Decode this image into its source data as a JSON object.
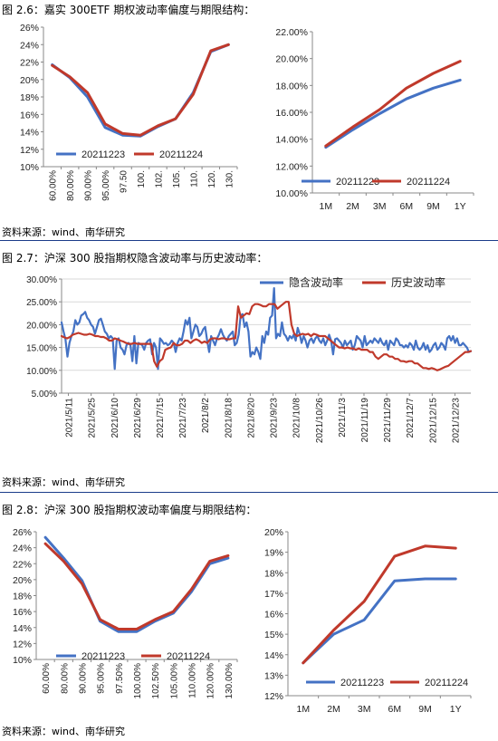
{
  "colors": {
    "blue": "#4472C4",
    "red": "#C0392B",
    "grid": "#d9d9d9",
    "rule": "#1a3c8a"
  },
  "fig1": {
    "title": "图 2.6：嘉实 300ETF 期权波动率偏度与期限结构：",
    "source": "资料来源：wind、南华研究"
  },
  "fig2": {
    "title": "图 2.7：沪深 300 股指期权隐含波动率与历史波动率：",
    "source": "资料来源：wind、南华研究"
  },
  "fig3": {
    "title": "图 2.8：沪深 300 股指期权波动率偏度与期限结构：",
    "source": "资料来源：wind、南华研究"
  },
  "chart_data": [
    {
      "id": "c1",
      "type": "line",
      "title": "",
      "categories": [
        "60.00%",
        "80.00%",
        "90.00%",
        "95.00%",
        "97.50%",
        "100.00%",
        "102.50%",
        "105.00%",
        "110.00%",
        "120.00%",
        "130.00%"
      ],
      "category_labels": [
        "60.00%",
        "80.00%",
        "90.00%",
        "95.00%",
        "97.50",
        "100.",
        "102.",
        "105.",
        "110.",
        "120.",
        "130."
      ],
      "ylim": [
        10,
        26
      ],
      "yticks": [
        10,
        12,
        14,
        16,
        18,
        20,
        22,
        24,
        26
      ],
      "ytick_labels": [
        "10%",
        "12%",
        "14%",
        "16%",
        "18%",
        "20%",
        "22%",
        "24%",
        "26%"
      ],
      "grid": false,
      "legend_position": "bottom-left",
      "series": [
        {
          "name": "20211223",
          "values": [
            21.7,
            20.2,
            18.0,
            14.5,
            13.6,
            13.5,
            14.6,
            15.5,
            18.5,
            23.2,
            24.0
          ]
        },
        {
          "name": "20211224",
          "values": [
            21.6,
            20.3,
            18.5,
            14.9,
            13.8,
            13.6,
            14.7,
            15.5,
            18.3,
            23.3,
            24.0
          ]
        }
      ]
    },
    {
      "id": "c2",
      "type": "line",
      "title": "",
      "categories": [
        "1M",
        "2M",
        "3M",
        "6M",
        "9M",
        "1Y"
      ],
      "ylim": [
        10,
        22
      ],
      "yticks": [
        10,
        12,
        14,
        16,
        18,
        20,
        22
      ],
      "ytick_labels": [
        "10.00%",
        "12.00%",
        "14.00%",
        "16.00%",
        "18.00%",
        "20.00%",
        "22.00%"
      ],
      "grid": false,
      "legend_position": "bottom",
      "series": [
        {
          "name": "20211223",
          "values": [
            13.4,
            14.7,
            15.9,
            17.0,
            17.8,
            18.4
          ]
        },
        {
          "name": "20211224",
          "values": [
            13.5,
            14.9,
            16.2,
            17.8,
            18.9,
            19.8
          ]
        }
      ]
    },
    {
      "id": "c3",
      "type": "line",
      "title": "",
      "x_labels": [
        "2021/5/11",
        "2021/5/25",
        "2021/6/10",
        "2021/6/29",
        "2021/7/15",
        "2021/7/23",
        "2021/8/2",
        "2021/8/18",
        "2021/8/20",
        "2021/9/23",
        "2021/10/8",
        "2021/10/26",
        "2021/11/3",
        "2021/11/19",
        "2021/11/29",
        "2021/12/7",
        "2021/12/15",
        "2021/12/23"
      ],
      "ylim": [
        5,
        30
      ],
      "yticks": [
        5,
        10,
        15,
        20,
        25,
        30
      ],
      "ytick_labels": [
        "5.00%",
        "10.00%",
        "15.00%",
        "20.00%",
        "25.00%",
        "30.00%"
      ],
      "grid": true,
      "legend_position": "top-right",
      "series": [
        {
          "name": "隐含波动率",
          "values": [
            20.5,
            18.5,
            16.8,
            13.0,
            16.0,
            17.5,
            18.5,
            21.0,
            20.0,
            20.5,
            22.0,
            22.3,
            22.8,
            21.5,
            21.0,
            20.0,
            19.5,
            18.0,
            19.5,
            21.0,
            21.3,
            20.0,
            18.5,
            18.0,
            17.0,
            17.5,
            17.0,
            10.3,
            16.5,
            17.0,
            15.0,
            14.5,
            13.5,
            15.5,
            16.0,
            15.5,
            12.0,
            17.5,
            11.5,
            16.0,
            15.8,
            15.5,
            14.5,
            16.0,
            16.5,
            16.8,
            13.5,
            16.0,
            15.0,
            10.3,
            17.0,
            16.5,
            15.8,
            16.0,
            15.5,
            15.8,
            16.5,
            16.0,
            14.0,
            16.0,
            17.0,
            16.5,
            18.5,
            21.0,
            20.0,
            21.5,
            17.0,
            18.5,
            20.0,
            19.5,
            17.5,
            18.0,
            19.0,
            19.5,
            16.5,
            14.0,
            17.5,
            16.5,
            15.5,
            17.0,
            17.8,
            19.0,
            17.8,
            17.0,
            16.5,
            17.5,
            18.0,
            18.5,
            15.5,
            16.0,
            17.8,
            22.0,
            22.3,
            19.5,
            20.5,
            18.5,
            13.0,
            14.0,
            13.5,
            15.0,
            14.0,
            12.5,
            17.5,
            16.0,
            18.5,
            17.8,
            21.5,
            22.0,
            28.0,
            17.0,
            18.0,
            17.5,
            20.5,
            18.0,
            17.5,
            16.5,
            17.5,
            17.0,
            17.8,
            16.5,
            19.3,
            18.0,
            16.0,
            17.5,
            16.5,
            15.0,
            16.5,
            17.0,
            16.0,
            17.0,
            17.5,
            16.5,
            16.0,
            17.0,
            15.5,
            16.5,
            17.8,
            16.5,
            13.5,
            16.8,
            17.0,
            16.5,
            16.0,
            15.0,
            16.5,
            15.5,
            16.0,
            16.5,
            14.5,
            15.5,
            17.5,
            17.0,
            16.5,
            15.0,
            17.5,
            15.5,
            16.0,
            16.5,
            16.0,
            17.0,
            16.5,
            16.0,
            17.0,
            16.0,
            15.5,
            16.5,
            14.5,
            16.5,
            16.0,
            15.5,
            17.0,
            16.5,
            15.5,
            15.5,
            15.0,
            15.5,
            15.0,
            16.0,
            15.5,
            14.5,
            16.5,
            15.0,
            14.5,
            15.0,
            16.0,
            14.5,
            15.5,
            14.0,
            14.5,
            15.5,
            16.0,
            14.5,
            15.0,
            16.0,
            15.5,
            14.5,
            17.0,
            17.5,
            16.5,
            17.5,
            16.0,
            17.0,
            15.5,
            15.5,
            16.0,
            15.5,
            15.0,
            14.0,
            14.2
          ],
          "note": ""
        },
        {
          "name": "历史波动率",
          "values": [
            17.5,
            17.2,
            17.0,
            17.3,
            17.8,
            18.0,
            18.2,
            18.0,
            17.8,
            17.8,
            18.0,
            17.8,
            17.5,
            17.5,
            17.3,
            17.3,
            17.0,
            16.5,
            16.5,
            17.0,
            16.8,
            16.5,
            16.3,
            16.0,
            15.8,
            15.8,
            16.0,
            15.8,
            15.8,
            15.8,
            15.8,
            15.8,
            15.8,
            12.0,
            10.8,
            12.0,
            12.5,
            14.5,
            14.8,
            15.0,
            16.0,
            15.5,
            15.5,
            15.8,
            16.5,
            16.5,
            16.0,
            16.5,
            16.8,
            16.5,
            16.0,
            16.3,
            16.0,
            16.8,
            17.0,
            17.0,
            16.8,
            17.0,
            17.0,
            16.8,
            16.8,
            17.0,
            17.0,
            24.0,
            21.5,
            22.0,
            22.5,
            22.3,
            24.0,
            24.5,
            24.5,
            24.3,
            24.0,
            24.0,
            24.5,
            24.5,
            24.5,
            23.5,
            24.0,
            24.5,
            25.0,
            25.0,
            20.0,
            18.0,
            17.5,
            17.8,
            18.0,
            17.8,
            18.0,
            17.5,
            18.0,
            17.8,
            17.5,
            17.5,
            17.5,
            17.0,
            16.5,
            16.0,
            15.5,
            15.0,
            15.0,
            14.8,
            15.0,
            14.8,
            14.8,
            14.5,
            14.8,
            14.5,
            14.5,
            14.5,
            14.0,
            14.0,
            13.0,
            12.5,
            13.0,
            13.5,
            13.5,
            13.0,
            13.0,
            12.5,
            12.5,
            12.0,
            12.0,
            11.8,
            12.0,
            12.0,
            11.5,
            11.5,
            11.0,
            10.5,
            10.5,
            10.3,
            10.5,
            10.3,
            10.0,
            10.2,
            10.5,
            10.8,
            11.0,
            11.5,
            12.0,
            12.5,
            13.0,
            13.5,
            14.0,
            14.0,
            14.2
          ],
          "note": ""
        }
      ]
    },
    {
      "id": "c4",
      "type": "line",
      "title": "",
      "categories": [
        "60.00%",
        "80.00%",
        "90.00%",
        "95.00%",
        "97.50%",
        "100.00%",
        "102.50%",
        "105.00%",
        "110.00%",
        "120.00%",
        "130.00%"
      ],
      "ylim": [
        10,
        26
      ],
      "yticks": [
        10,
        12,
        14,
        16,
        18,
        20,
        22,
        24,
        26
      ],
      "ytick_labels": [
        "10%",
        "12%",
        "14%",
        "16%",
        "18%",
        "20%",
        "22%",
        "24%",
        "26%"
      ],
      "grid": false,
      "legend_position": "bottom-left",
      "series": [
        {
          "name": "20211223",
          "values": [
            25.3,
            22.7,
            19.9,
            14.8,
            13.5,
            13.5,
            14.8,
            15.8,
            18.5,
            22.0,
            22.7
          ]
        },
        {
          "name": "20211224",
          "values": [
            24.5,
            22.3,
            19.5,
            15.0,
            13.8,
            13.8,
            15.0,
            16.0,
            18.8,
            22.3,
            23.0
          ]
        }
      ]
    },
    {
      "id": "c5",
      "type": "line",
      "title": "",
      "categories": [
        "1M",
        "2M",
        "3M",
        "6M",
        "9M",
        "1Y"
      ],
      "ylim": [
        12,
        20
      ],
      "yticks": [
        12,
        13,
        14,
        15,
        16,
        17,
        18,
        19,
        20
      ],
      "ytick_labels": [
        "12%",
        "13%",
        "14%",
        "15%",
        "16%",
        "17%",
        "18%",
        "19%",
        "20%"
      ],
      "grid": false,
      "legend_position": "bottom",
      "series": [
        {
          "name": "20211223",
          "values": [
            13.6,
            15.0,
            15.7,
            17.6,
            17.7,
            17.7
          ]
        },
        {
          "name": "20211224",
          "values": [
            13.6,
            15.2,
            16.6,
            18.8,
            19.3,
            19.2
          ]
        }
      ]
    }
  ]
}
